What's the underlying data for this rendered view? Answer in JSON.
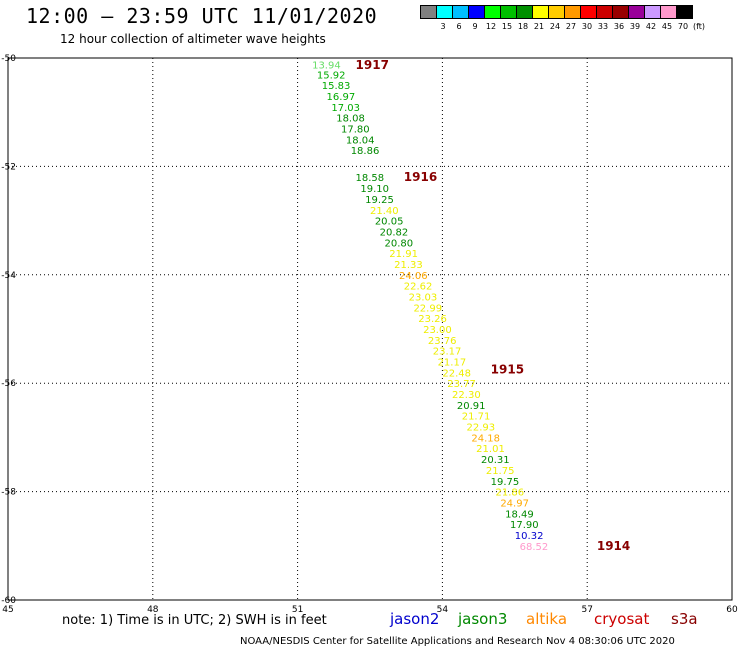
{
  "title": "12:00 – 23:59 UTC 11/01/2020",
  "subtitle": "12 hour collection of altimeter wave heights",
  "colorbar": {
    "colors": [
      "#808080",
      "#00ffff",
      "#00bfff",
      "#0000ff",
      "#00ff00",
      "#00c000",
      "#009000",
      "#ffff00",
      "#ffcc00",
      "#ff9900",
      "#ff0000",
      "#cc0000",
      "#990000",
      "#990099",
      "#cc99ff",
      "#ff99cc",
      "#000000"
    ],
    "labels": [
      "3",
      "6",
      "9",
      "12",
      "15",
      "18",
      "21",
      "24",
      "27",
      "30",
      "33",
      "36",
      "39",
      "42",
      "45",
      "70",
      "(ft)"
    ]
  },
  "note": "note:  1) Time is in UTC;  2) SWH is in feet",
  "satellites": [
    {
      "name": "jason2",
      "color": "#0000cc"
    },
    {
      "name": "jason3",
      "color": "#008800"
    },
    {
      "name": "altika",
      "color": "#ff8800"
    },
    {
      "name": "cryosat",
      "color": "#cc0000"
    },
    {
      "name": "s3a",
      "color": "#880000"
    }
  ],
  "footer": "NOAA/NESDIS Center for Satellite Applications and Research    Nov  4 08:30:06 UTC 2020",
  "chart_data": {
    "type": "scatter",
    "xlim": [
      45,
      60
    ],
    "ylim": [
      -60,
      -50
    ],
    "xticks": [
      "45",
      "48",
      "51",
      "54",
      "57",
      "60"
    ],
    "yticks": [
      "-50",
      "-52",
      "-54",
      "-56",
      "-58",
      "-60"
    ],
    "grid": true,
    "time_labels": [
      {
        "text": "1917",
        "x": 52.2,
        "y": -50.13
      },
      {
        "text": "1916",
        "x": 53.2,
        "y": -52.2
      },
      {
        "text": "1915",
        "x": 55.0,
        "y": -55.75
      },
      {
        "text": "1914",
        "x": 57.2,
        "y": -59.0
      }
    ],
    "points": [
      {
        "x": 51.3,
        "y": -50.12,
        "v": "13.94",
        "c": "#66dd66"
      },
      {
        "x": 51.4,
        "y": -50.3,
        "v": "15.92",
        "c": "#00aa00"
      },
      {
        "x": 51.5,
        "y": -50.5,
        "v": "15.83",
        "c": "#00aa00"
      },
      {
        "x": 51.6,
        "y": -50.7,
        "v": "16.97",
        "c": "#00aa00"
      },
      {
        "x": 51.7,
        "y": -50.9,
        "v": "17.03",
        "c": "#00aa00"
      },
      {
        "x": 51.8,
        "y": -51.1,
        "v": "18.08",
        "c": "#008800"
      },
      {
        "x": 51.9,
        "y": -51.3,
        "v": "17.80",
        "c": "#008800"
      },
      {
        "x": 52.0,
        "y": -51.5,
        "v": "18.04",
        "c": "#008800"
      },
      {
        "x": 52.1,
        "y": -51.7,
        "v": "18.86",
        "c": "#008800"
      },
      {
        "x": 52.2,
        "y": -52.2,
        "v": "18.58",
        "c": "#008800"
      },
      {
        "x": 52.3,
        "y": -52.4,
        "v": "19.10",
        "c": "#008800"
      },
      {
        "x": 52.4,
        "y": -52.6,
        "v": "19.25",
        "c": "#008800"
      },
      {
        "x": 52.5,
        "y": -52.8,
        "v": "21.40",
        "c": "#eeee00"
      },
      {
        "x": 52.6,
        "y": -53.0,
        "v": "20.05",
        "c": "#008800"
      },
      {
        "x": 52.7,
        "y": -53.2,
        "v": "20.82",
        "c": "#008800"
      },
      {
        "x": 52.8,
        "y": -53.4,
        "v": "20.80",
        "c": "#008800"
      },
      {
        "x": 52.9,
        "y": -53.6,
        "v": "21.91",
        "c": "#eeee00"
      },
      {
        "x": 53.0,
        "y": -53.8,
        "v": "21.33",
        "c": "#eeee00"
      },
      {
        "x": 53.1,
        "y": -54.0,
        "v": "24.06",
        "c": "#ffaa00"
      },
      {
        "x": 53.2,
        "y": -54.2,
        "v": "22.62",
        "c": "#eeee00"
      },
      {
        "x": 53.3,
        "y": -54.4,
        "v": "23.03",
        "c": "#eeee00"
      },
      {
        "x": 53.4,
        "y": -54.6,
        "v": "22.99",
        "c": "#eeee00"
      },
      {
        "x": 53.5,
        "y": -54.8,
        "v": "23.26",
        "c": "#eeee00"
      },
      {
        "x": 53.6,
        "y": -55.0,
        "v": "23.00",
        "c": "#eeee00"
      },
      {
        "x": 53.7,
        "y": -55.2,
        "v": "23.76",
        "c": "#eeee00"
      },
      {
        "x": 53.8,
        "y": -55.4,
        "v": "23.17",
        "c": "#eeee00"
      },
      {
        "x": 53.9,
        "y": -55.6,
        "v": "21.17",
        "c": "#eeee00"
      },
      {
        "x": 54.0,
        "y": -55.8,
        "v": "22.48",
        "c": "#eeee00"
      },
      {
        "x": 54.1,
        "y": -56.0,
        "v": "23.77",
        "c": "#eeee00"
      },
      {
        "x": 54.2,
        "y": -56.2,
        "v": "22.30",
        "c": "#eeee00"
      },
      {
        "x": 54.3,
        "y": -56.4,
        "v": "20.91",
        "c": "#008800"
      },
      {
        "x": 54.4,
        "y": -56.6,
        "v": "21.71",
        "c": "#eeee00"
      },
      {
        "x": 54.5,
        "y": -56.8,
        "v": "22.93",
        "c": "#eeee00"
      },
      {
        "x": 54.6,
        "y": -57.0,
        "v": "24.18",
        "c": "#ffaa00"
      },
      {
        "x": 54.7,
        "y": -57.2,
        "v": "21.01",
        "c": "#eeee00"
      },
      {
        "x": 54.8,
        "y": -57.4,
        "v": "20.31",
        "c": "#008800"
      },
      {
        "x": 54.9,
        "y": -57.6,
        "v": "21.75",
        "c": "#eeee00"
      },
      {
        "x": 55.0,
        "y": -57.8,
        "v": "19.75",
        "c": "#008800"
      },
      {
        "x": 55.1,
        "y": -58.0,
        "v": "21.86",
        "c": "#eeee00"
      },
      {
        "x": 55.2,
        "y": -58.2,
        "v": "24.97",
        "c": "#ffaa00"
      },
      {
        "x": 55.3,
        "y": -58.4,
        "v": "18.49",
        "c": "#008800"
      },
      {
        "x": 55.4,
        "y": -58.6,
        "v": "17.90",
        "c": "#008800"
      },
      {
        "x": 55.5,
        "y": -58.8,
        "v": "10.32",
        "c": "#0000cc"
      },
      {
        "x": 55.6,
        "y": -59.0,
        "v": "68.52",
        "c": "#ff99cc"
      }
    ]
  }
}
